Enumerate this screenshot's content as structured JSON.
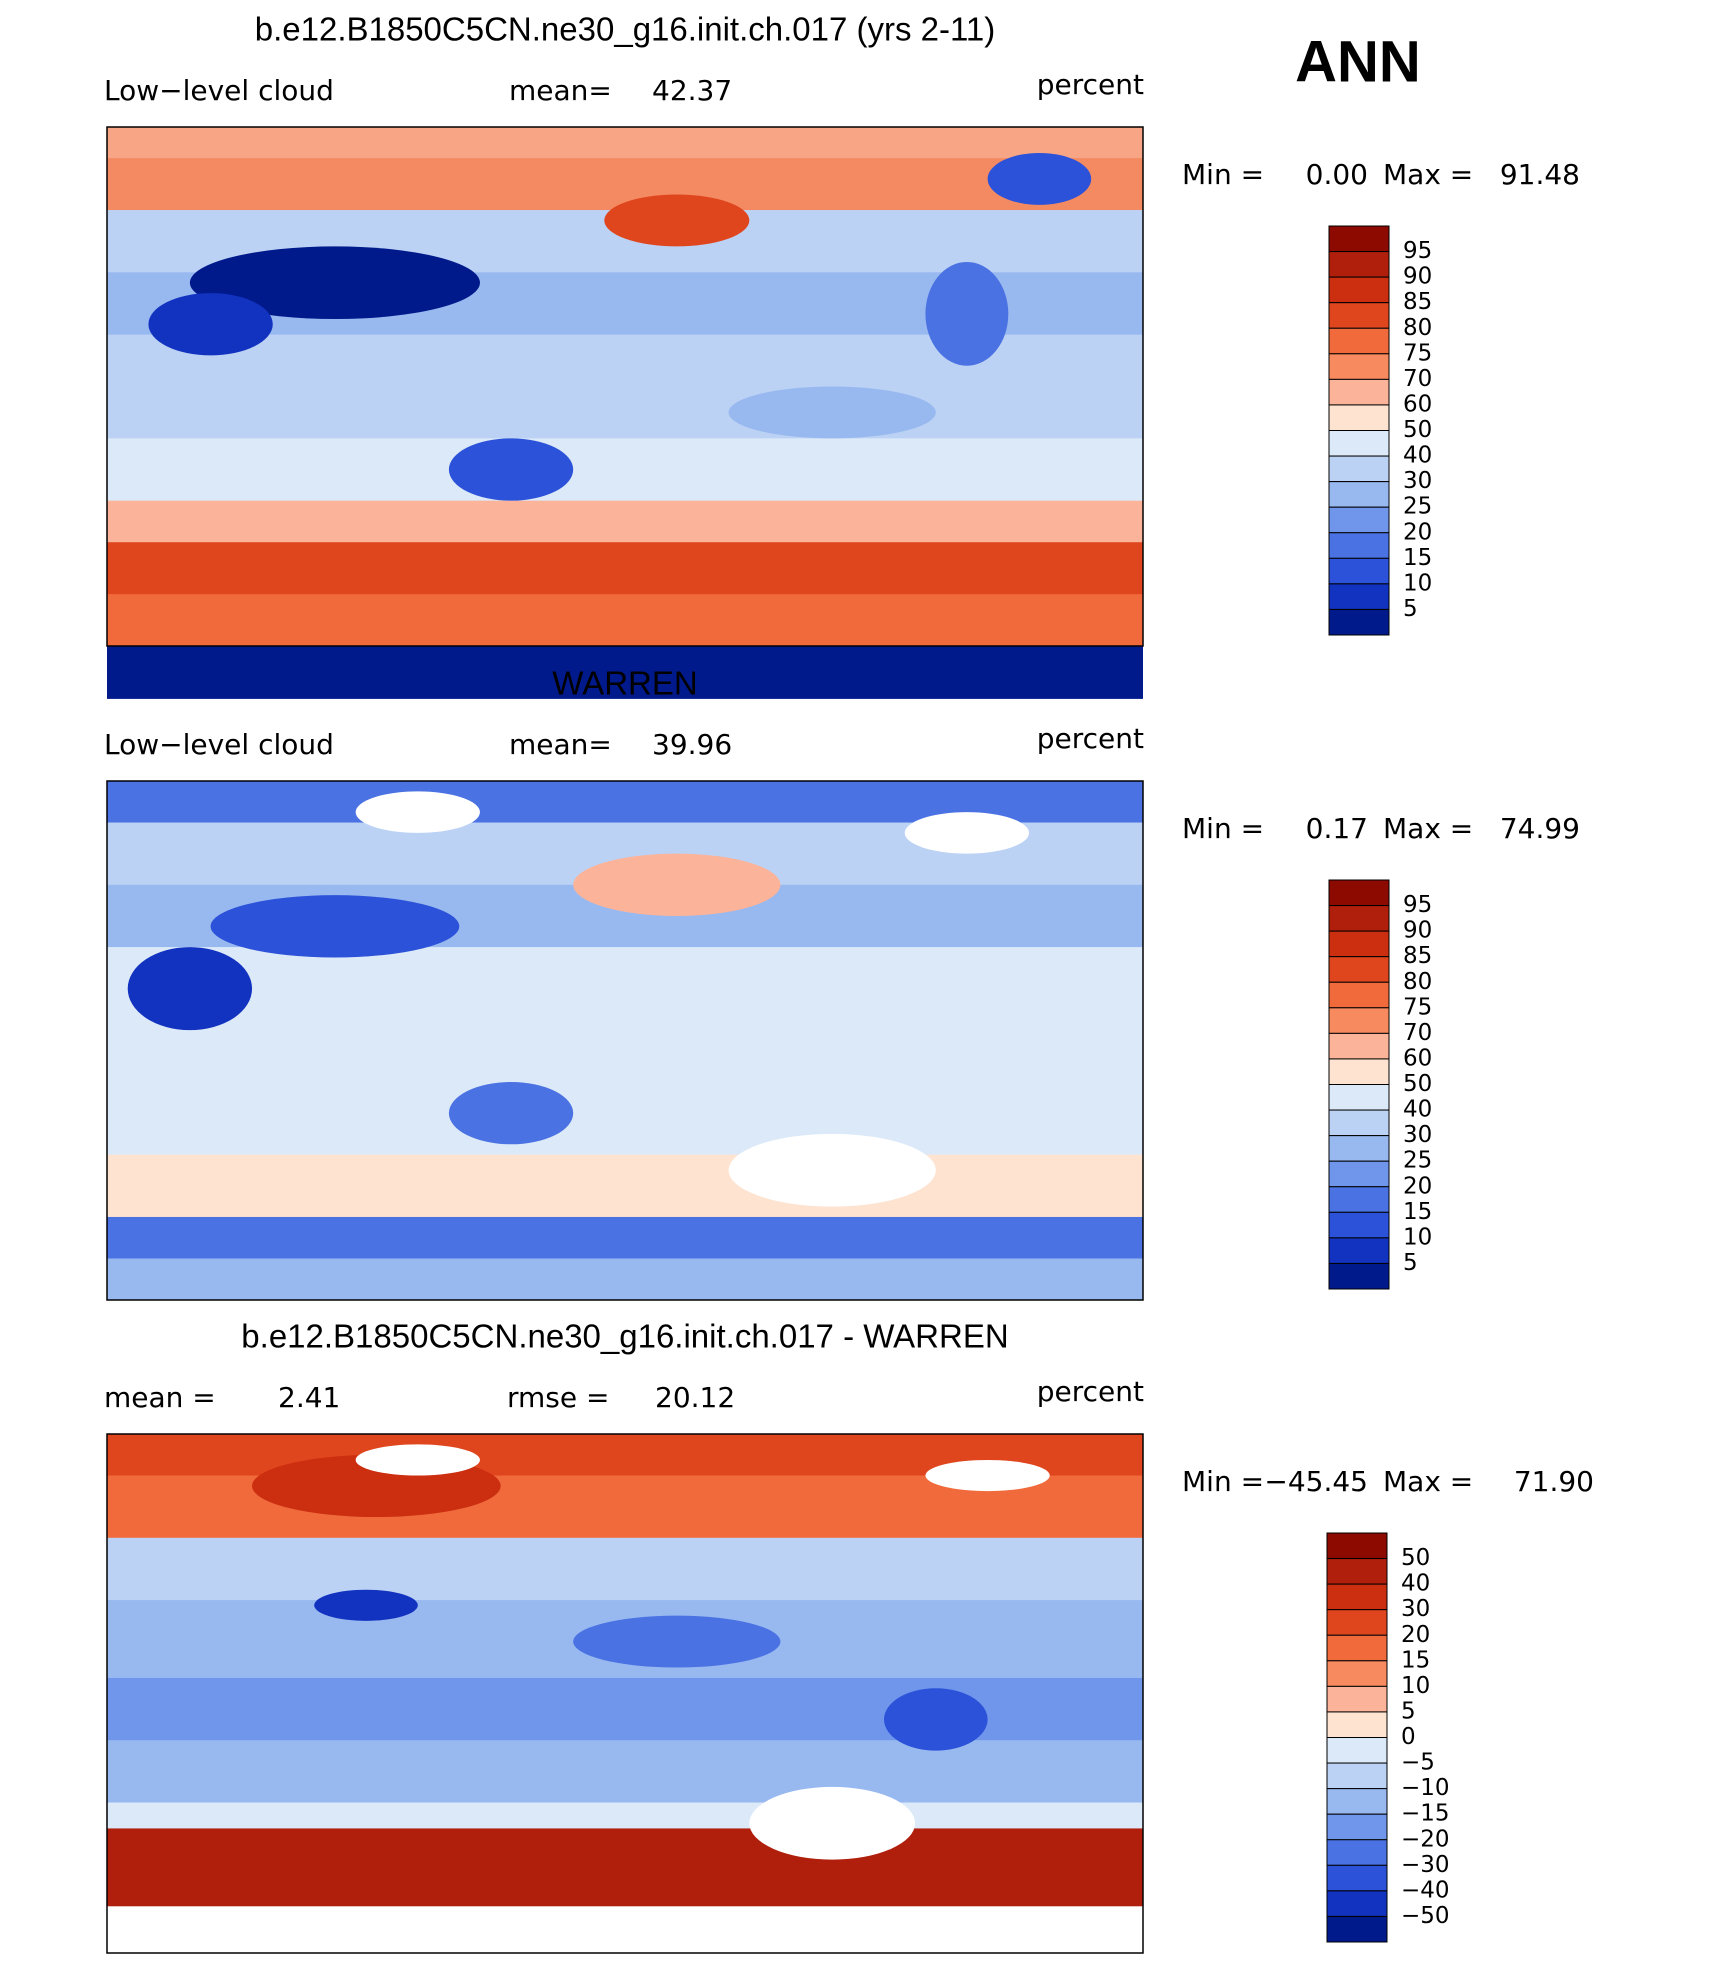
{
  "header": {
    "label": "ANN"
  },
  "panels": [
    {
      "title": "b.e12.B1850C5CN.ne30_g16.init.ch.017 (yrs 2-11)",
      "variable": "Low−level cloud",
      "stats": [
        {
          "label": "mean=",
          "value": "42.37"
        }
      ],
      "units": "percent",
      "min_label": "Min =",
      "min_value": "0.00",
      "max_label": "Max =",
      "max_value": "91.48",
      "colorbar": {
        "labels": [
          "95",
          "90",
          "85",
          "80",
          "75",
          "70",
          "60",
          "50",
          "40",
          "30",
          "25",
          "20",
          "15",
          "10",
          "5"
        ],
        "colors": [
          "#8c0a00",
          "#b01e0c",
          "#cc2e10",
          "#e0461e",
          "#f06a3c",
          "#f88a60",
          "#fbb49a",
          "#fde3d0",
          "#dce9f8",
          "#bcd2f5",
          "#98b8f0",
          "#6f96ea",
          "#4a72e2",
          "#2b52d8",
          "#1232c0",
          "#001a8c"
        ]
      }
    },
    {
      "title": "WARREN",
      "variable": "Low−level cloud",
      "stats": [
        {
          "label": "mean=",
          "value": "39.96"
        }
      ],
      "units": "percent",
      "min_label": "Min =",
      "min_value": "0.17",
      "max_label": "Max =",
      "max_value": "74.99",
      "colorbar": {
        "labels": [
          "95",
          "90",
          "85",
          "80",
          "75",
          "70",
          "60",
          "50",
          "40",
          "30",
          "25",
          "20",
          "15",
          "10",
          "5"
        ],
        "colors": [
          "#8c0a00",
          "#b01e0c",
          "#cc2e10",
          "#e0461e",
          "#f06a3c",
          "#f88a60",
          "#fbb49a",
          "#fde3d0",
          "#dce9f8",
          "#bcd2f5",
          "#98b8f0",
          "#6f96ea",
          "#4a72e2",
          "#2b52d8",
          "#1232c0",
          "#001a8c"
        ]
      }
    },
    {
      "title": "b.e12.B1850C5CN.ne30_g16.init.ch.017 - WARREN",
      "stats": [
        {
          "label": "mean =",
          "value": "2.41"
        },
        {
          "label": "rmse =",
          "value": "20.12"
        }
      ],
      "units": "percent",
      "min_label": "Min =",
      "min_value": "−45.45",
      "max_label": "Max =",
      "max_value": "71.90",
      "colorbar": {
        "labels": [
          "50",
          "40",
          "30",
          "20",
          "15",
          "10",
          "5",
          "0",
          "−5",
          "−10",
          "−15",
          "−20",
          "−30",
          "−40",
          "−50"
        ],
        "colors": [
          "#8c0a00",
          "#b01e0c",
          "#cc2e10",
          "#e0461e",
          "#f06a3c",
          "#f88a60",
          "#fbb49a",
          "#fde3d0",
          "#dce9f8",
          "#bcd2f5",
          "#98b8f0",
          "#6f96ea",
          "#4a72e2",
          "#2b52d8",
          "#1232c0",
          "#001a8c"
        ]
      }
    }
  ]
}
